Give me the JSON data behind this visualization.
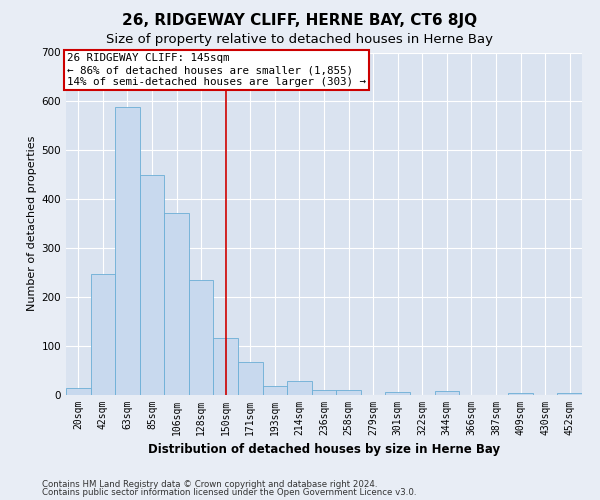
{
  "title": "26, RIDGEWAY CLIFF, HERNE BAY, CT6 8JQ",
  "subtitle": "Size of property relative to detached houses in Herne Bay",
  "xlabel": "Distribution of detached houses by size in Herne Bay",
  "ylabel": "Number of detached properties",
  "footer_line1": "Contains HM Land Registry data © Crown copyright and database right 2024.",
  "footer_line2": "Contains public sector information licensed under the Open Government Licence v3.0.",
  "categories": [
    "20sqm",
    "42sqm",
    "63sqm",
    "85sqm",
    "106sqm",
    "128sqm",
    "150sqm",
    "171sqm",
    "193sqm",
    "214sqm",
    "236sqm",
    "258sqm",
    "279sqm",
    "301sqm",
    "322sqm",
    "344sqm",
    "366sqm",
    "387sqm",
    "409sqm",
    "430sqm",
    "452sqm"
  ],
  "values": [
    15,
    247,
    588,
    449,
    372,
    235,
    117,
    67,
    18,
    29,
    10,
    10,
    0,
    6,
    0,
    8,
    0,
    0,
    5,
    0,
    4
  ],
  "bar_color": "#c8d9ee",
  "bar_edge_color": "#6baed6",
  "highlight_index": 6,
  "highlight_line_color": "#cc0000",
  "annotation_line1": "26 RIDGEWAY CLIFF: 145sqm",
  "annotation_line2": "← 86% of detached houses are smaller (1,855)",
  "annotation_line3": "14% of semi-detached houses are larger (303) →",
  "annotation_box_color": "#cc0000",
  "ylim": [
    0,
    700
  ],
  "yticks": [
    0,
    100,
    200,
    300,
    400,
    500,
    600,
    700
  ],
  "bg_color": "#e8edf5",
  "plot_bg_color": "#dae3f0",
  "grid_color": "#ffffff",
  "title_fontsize": 11,
  "subtitle_fontsize": 9.5,
  "xlabel_fontsize": 8.5,
  "ylabel_fontsize": 8,
  "tick_fontsize": 7.5,
  "xtick_fontsize": 7
}
